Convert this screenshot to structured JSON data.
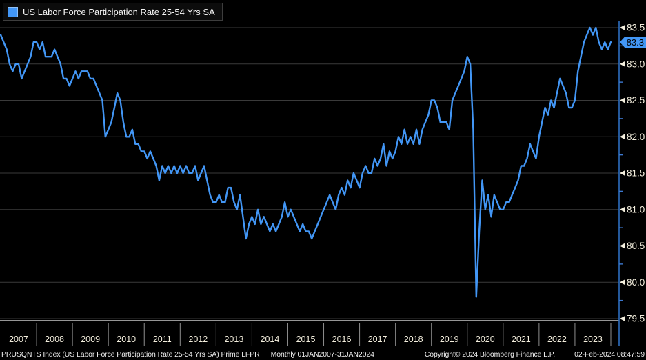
{
  "legend": {
    "label": "US Labor Force Participation Rate 25-54 Yrs SA",
    "swatch_color": "#4296f5"
  },
  "y_axis": {
    "major_ticks": [
      "83.5",
      "83.0",
      "82.5",
      "82.0",
      "81.5",
      "81.0",
      "80.5",
      "80.0",
      "79.5"
    ],
    "minor_ticks": [
      83.25,
      82.75,
      82.25,
      81.75,
      81.25,
      80.75,
      80.25,
      79.75
    ],
    "last_value_badge": "83.3",
    "label_color": "#f3eedd",
    "axis_color": "#2e6fc0",
    "badge_color": "#4296f5"
  },
  "x_axis": {
    "year_labels": [
      "2007",
      "2008",
      "2009",
      "2010",
      "2011",
      "2012",
      "2013",
      "2014",
      "2015",
      "2016",
      "2017",
      "2018",
      "2019",
      "2020",
      "2021",
      "2022",
      "2023"
    ],
    "label_color": "#f3eedd",
    "separator_color": "#8f8f8f"
  },
  "footer": {
    "instrument": "PRUSQNTS Index (US Labor Force Participation Rate 25-54 Yrs SA) Prime LFPR",
    "frequency_range": "Monthly 01JAN2007-31JAN2024",
    "copyright": "Copyright© 2024 Bloomberg Finance L.P.",
    "timestamp": "02-Feb-2024 08:47:59"
  },
  "colors": {
    "background": "#000000",
    "gridline": "#3a3a3a",
    "bottom_axis": "#c9c9c9",
    "line": "#4296f5"
  },
  "chart_data": {
    "type": "line",
    "title": "US Labor Force Participation Rate 25-54 Yrs SA",
    "xlabel": "",
    "ylabel": "",
    "ylim": [
      79.5,
      83.5
    ],
    "y_gridline_step": 0.5,
    "grid": "horizontal-only",
    "legend_position": "top-left",
    "last_value": 83.3,
    "series": [
      {
        "name": "US Labor Force Participation Rate 25-54 Yrs SA",
        "color": "#4296f5",
        "frequency": "monthly",
        "start": "Jan 2007",
        "end": "Jan 2024",
        "values": [
          83.4,
          83.3,
          83.2,
          83.0,
          82.9,
          83.0,
          83.0,
          82.8,
          82.9,
          83.0,
          83.1,
          83.3,
          83.3,
          83.2,
          83.3,
          83.1,
          83.1,
          83.1,
          83.2,
          83.1,
          83.0,
          82.8,
          82.8,
          82.7,
          82.8,
          82.9,
          82.8,
          82.9,
          82.9,
          82.9,
          82.8,
          82.8,
          82.7,
          82.6,
          82.5,
          82.0,
          82.1,
          82.2,
          82.4,
          82.6,
          82.5,
          82.2,
          82.0,
          82.0,
          82.1,
          81.9,
          81.9,
          81.8,
          81.8,
          81.7,
          81.8,
          81.7,
          81.6,
          81.4,
          81.6,
          81.5,
          81.6,
          81.5,
          81.6,
          81.5,
          81.6,
          81.5,
          81.6,
          81.5,
          81.5,
          81.6,
          81.4,
          81.5,
          81.6,
          81.4,
          81.2,
          81.1,
          81.1,
          81.2,
          81.1,
          81.1,
          81.3,
          81.3,
          81.1,
          81.0,
          81.2,
          80.9,
          80.6,
          80.8,
          80.9,
          80.8,
          81.0,
          80.8,
          80.9,
          80.8,
          80.7,
          80.8,
          80.7,
          80.8,
          80.9,
          81.1,
          80.9,
          81.0,
          80.9,
          80.8,
          80.7,
          80.8,
          80.7,
          80.7,
          80.6,
          80.7,
          80.8,
          80.9,
          81.0,
          81.1,
          81.2,
          81.1,
          81.0,
          81.2,
          81.3,
          81.2,
          81.4,
          81.3,
          81.5,
          81.4,
          81.3,
          81.5,
          81.6,
          81.5,
          81.5,
          81.7,
          81.6,
          81.7,
          81.9,
          81.6,
          81.8,
          81.7,
          81.8,
          82.0,
          81.9,
          82.1,
          81.9,
          82.0,
          81.9,
          82.1,
          81.9,
          82.1,
          82.2,
          82.3,
          82.5,
          82.5,
          82.4,
          82.2,
          82.2,
          82.2,
          82.1,
          82.5,
          82.6,
          82.7,
          82.8,
          82.9,
          83.1,
          83.0,
          82.1,
          79.8,
          80.7,
          81.4,
          81.0,
          81.2,
          80.9,
          81.2,
          81.1,
          81.0,
          81.0,
          81.1,
          81.1,
          81.2,
          81.3,
          81.4,
          81.6,
          81.6,
          81.7,
          81.9,
          81.8,
          81.7,
          82.0,
          82.2,
          82.4,
          82.3,
          82.5,
          82.4,
          82.6,
          82.8,
          82.7,
          82.6,
          82.4,
          82.4,
          82.5,
          82.9,
          83.1,
          83.3,
          83.4,
          83.5,
          83.4,
          83.5,
          83.3,
          83.2,
          83.3,
          83.2,
          83.3
        ]
      }
    ]
  }
}
